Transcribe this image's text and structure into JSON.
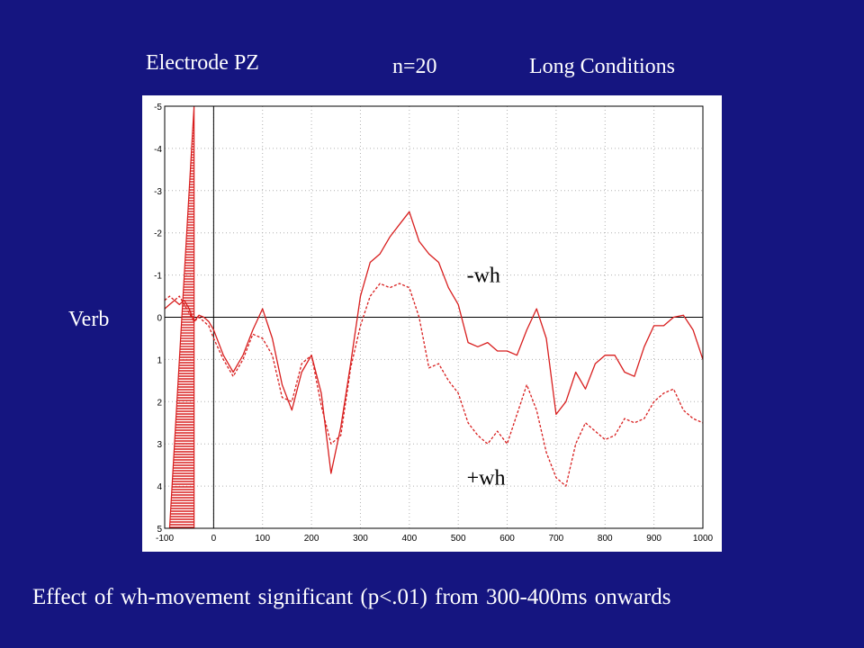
{
  "slide": {
    "electrode": "Electrode PZ",
    "n": "n=20",
    "conditions": "Long Conditions",
    "row_label": "Verb",
    "caption": "Effect of wh-movement significant (p<.01) from 300-400ms onwards"
  },
  "colors": {
    "background": "#151580",
    "plot_bg": "#ffffff",
    "trace": "#d81e1e",
    "grid": "#b0b0b0"
  },
  "chart_data": {
    "type": "line",
    "x_ticks": [
      -100,
      0,
      100,
      200,
      300,
      400,
      500,
      600,
      700,
      800,
      900,
      1000
    ],
    "y_ticks": [
      -5,
      -4,
      -3,
      -2,
      -1,
      0,
      1,
      2,
      3,
      4,
      5
    ],
    "xlim": [
      -100,
      1000
    ],
    "ylim": [
      -5,
      5
    ],
    "y_reversed": true,
    "grid": "dotted",
    "zero_line": true,
    "onset_line_x": 0,
    "calibration_shape": {
      "x_base": [
        -90,
        -40
      ],
      "x_peak": -40,
      "y_peak": -5
    },
    "annotations": [
      {
        "text": "-wh",
        "x": 510,
        "y": -1
      },
      {
        "text": "+wh",
        "x": 510,
        "y": 3.8
      }
    ],
    "series": [
      {
        "name": "-wh",
        "style": "solid",
        "x": [
          -100,
          -90,
          -80,
          -70,
          -60,
          -50,
          -40,
          -30,
          -20,
          -10,
          0,
          20,
          40,
          60,
          80,
          100,
          120,
          140,
          160,
          180,
          200,
          220,
          240,
          260,
          280,
          300,
          320,
          340,
          360,
          380,
          400,
          420,
          440,
          460,
          480,
          500,
          520,
          540,
          560,
          580,
          600,
          620,
          640,
          660,
          680,
          700,
          720,
          740,
          760,
          780,
          800,
          820,
          840,
          860,
          880,
          900,
          920,
          940,
          960,
          980,
          1000
        ],
        "y": [
          -0.2,
          -0.3,
          -0.4,
          -0.3,
          -0.4,
          -0.2,
          0.1,
          -0.05,
          0,
          0.1,
          0.3,
          0.9,
          1.3,
          0.9,
          0.3,
          -0.2,
          0.5,
          1.6,
          2.2,
          1.3,
          0.9,
          1.8,
          3.7,
          2.6,
          1.1,
          -0.5,
          -1.3,
          -1.5,
          -1.9,
          -2.2,
          -2.5,
          -1.8,
          -1.5,
          -1.3,
          -0.7,
          -0.3,
          0.6,
          0.7,
          0.6,
          0.8,
          0.8,
          0.9,
          0.3,
          -0.2,
          0.5,
          2.3,
          2.0,
          1.3,
          1.7,
          1.1,
          0.9,
          0.9,
          1.3,
          1.4,
          0.7,
          0.2,
          0.2,
          0.0,
          -0.05,
          0.3,
          1.0
        ]
      },
      {
        "name": "+wh",
        "style": "dotted",
        "x": [
          -100,
          -90,
          -80,
          -70,
          -60,
          -50,
          -40,
          -30,
          -20,
          -10,
          0,
          20,
          40,
          60,
          80,
          100,
          120,
          140,
          160,
          180,
          200,
          220,
          240,
          260,
          280,
          300,
          320,
          340,
          360,
          380,
          400,
          420,
          440,
          460,
          480,
          500,
          520,
          540,
          560,
          580,
          600,
          620,
          640,
          660,
          680,
          700,
          720,
          740,
          760,
          780,
          800,
          820,
          840,
          860,
          880,
          900,
          920,
          940,
          960,
          980,
          1000
        ],
        "y": [
          -0.4,
          -0.5,
          -0.4,
          -0.5,
          -0.3,
          -0.1,
          0.1,
          0,
          0.1,
          0.2,
          0.5,
          1.0,
          1.4,
          1.0,
          0.4,
          0.5,
          0.9,
          1.9,
          2.0,
          1.1,
          0.9,
          2.1,
          3.0,
          2.8,
          1.2,
          0.2,
          -0.5,
          -0.8,
          -0.7,
          -0.8,
          -0.7,
          0.0,
          1.2,
          1.1,
          1.5,
          1.8,
          2.5,
          2.8,
          3.0,
          2.7,
          3.0,
          2.3,
          1.6,
          2.2,
          3.2,
          3.8,
          4.0,
          3.0,
          2.5,
          2.7,
          2.9,
          2.8,
          2.4,
          2.5,
          2.4,
          2.0,
          1.8,
          1.7,
          2.2,
          2.4,
          2.5
        ]
      }
    ]
  }
}
